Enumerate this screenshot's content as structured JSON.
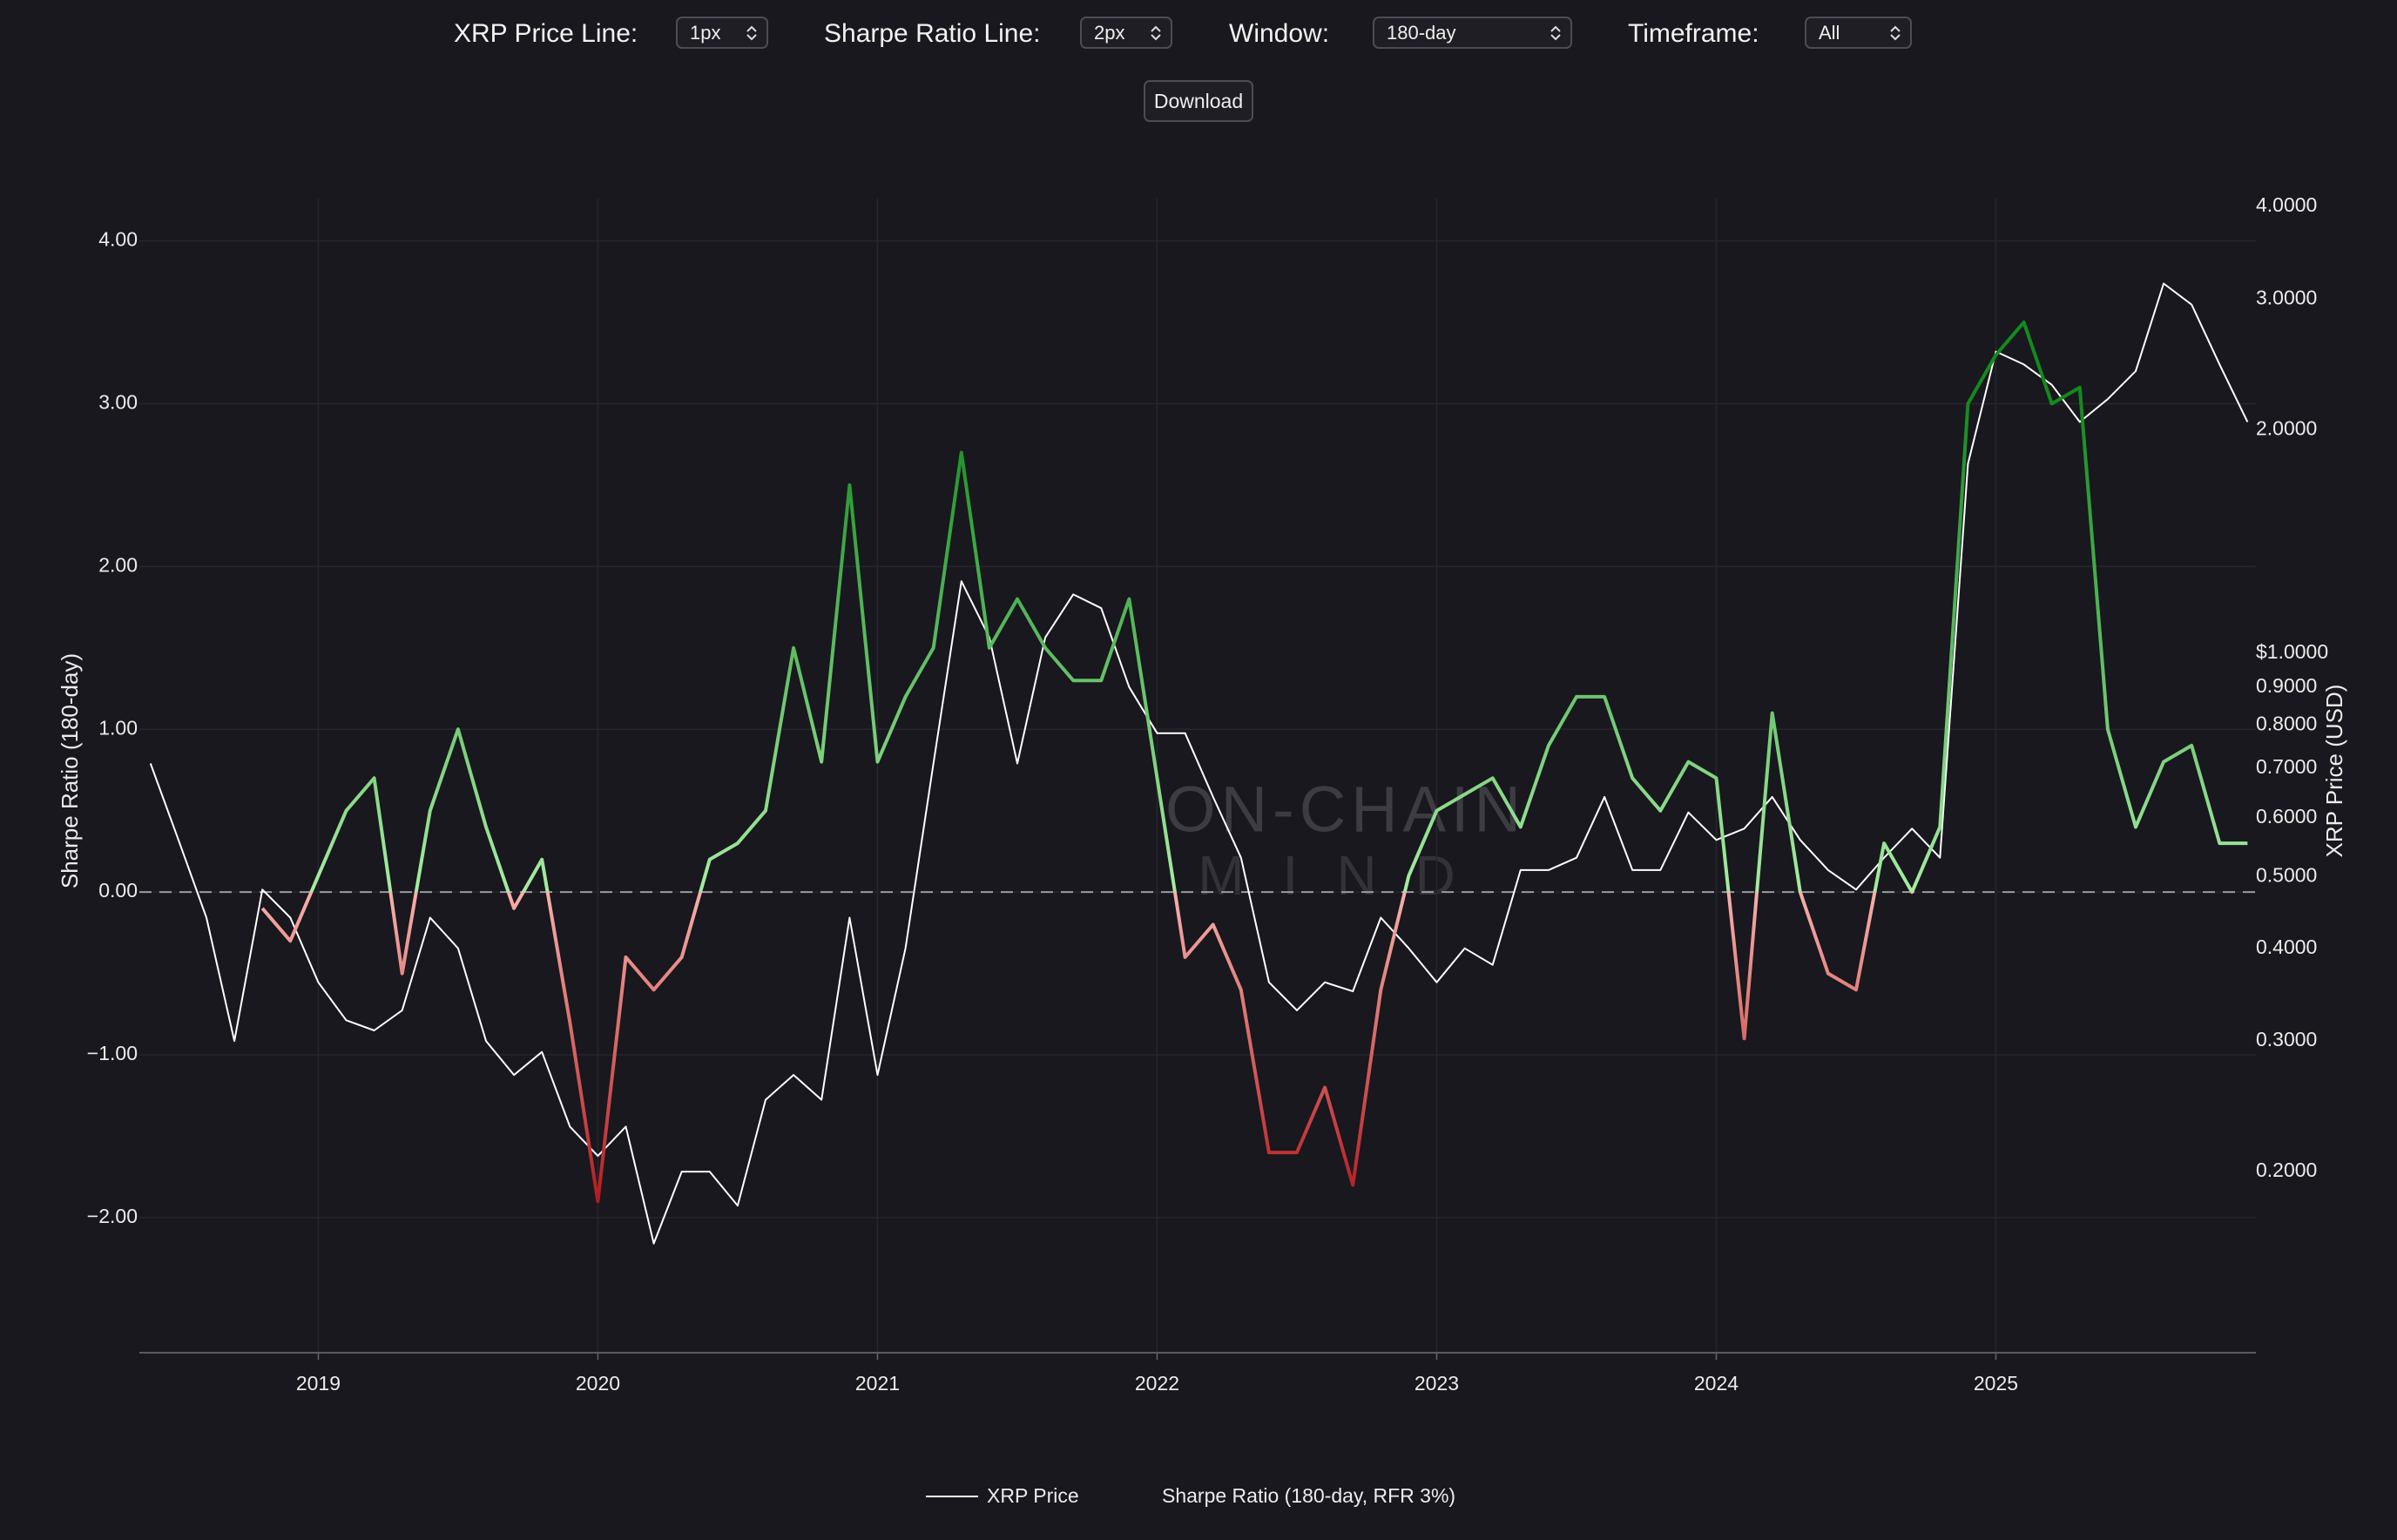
{
  "controls": [
    {
      "label": "XRP Price Line:",
      "value": "1px"
    },
    {
      "label": "Sharpe Ratio Line:",
      "value": "2px"
    },
    {
      "label": "Window:",
      "value": "180-day"
    },
    {
      "label": "Timeframe:",
      "value": "All"
    }
  ],
  "download": "Download",
  "watermark": [
    "ON-CHAIN",
    "MIND"
  ],
  "chart_data": {
    "type": "line",
    "ylabel": "Sharpe Ratio (180-day)",
    "y2label": "XRP Price (USD)",
    "x": [
      2018.4,
      2018.5,
      2018.6,
      2018.7,
      2018.8,
      2018.9,
      2019.0,
      2019.1,
      2019.2,
      2019.3,
      2019.4,
      2019.5,
      2019.6,
      2019.7,
      2019.8,
      2019.9,
      2020.0,
      2020.1,
      2020.2,
      2020.3,
      2020.4,
      2020.5,
      2020.6,
      2020.7,
      2020.8,
      2020.9,
      2021.0,
      2021.1,
      2021.2,
      2021.3,
      2021.4,
      2021.5,
      2021.6,
      2021.7,
      2021.8,
      2021.9,
      2022.0,
      2022.1,
      2022.2,
      2022.3,
      2022.4,
      2022.5,
      2022.6,
      2022.7,
      2022.8,
      2022.9,
      2023.0,
      2023.1,
      2023.2,
      2023.3,
      2023.4,
      2023.5,
      2023.6,
      2023.7,
      2023.8,
      2023.9,
      2024.0,
      2024.1,
      2024.2,
      2024.3,
      2024.4,
      2024.5,
      2024.6,
      2024.7,
      2024.8,
      2024.9,
      2025.0,
      2025.1,
      2025.2,
      2025.3,
      2025.4,
      2025.5,
      2025.6,
      2025.7,
      2025.8,
      2025.9
    ],
    "series": [
      {
        "name": "XRP Price",
        "color": "#ffffff",
        "axis": "y2",
        "values": [
          0.71,
          0.56,
          0.44,
          0.3,
          0.48,
          0.44,
          0.36,
          0.32,
          0.31,
          0.33,
          0.44,
          0.4,
          0.3,
          0.27,
          0.29,
          0.23,
          0.21,
          0.23,
          0.16,
          0.2,
          0.2,
          0.18,
          0.25,
          0.27,
          0.25,
          0.44,
          0.27,
          0.4,
          0.71,
          1.25,
          1.05,
          0.71,
          1.05,
          1.2,
          1.15,
          0.9,
          0.78,
          0.78,
          0.64,
          0.53,
          0.36,
          0.33,
          0.36,
          0.35,
          0.44,
          0.4,
          0.36,
          0.4,
          0.38,
          0.51,
          0.51,
          0.53,
          0.64,
          0.51,
          0.51,
          0.61,
          0.56,
          0.58,
          0.64,
          0.56,
          0.51,
          0.48,
          0.53,
          0.58,
          0.53,
          1.8,
          2.55,
          2.45,
          2.3,
          2.05,
          2.2,
          2.4,
          3.15,
          2.95,
          2.45,
          2.05
        ]
      },
      {
        "name": "Sharpe Ratio (180-day, RFR 3%)",
        "colorscale": [
          [
            -2,
            "#b01218"
          ],
          [
            0,
            "#f8b0aa"
          ],
          [
            0,
            "#a6eca2"
          ],
          [
            3,
            "#138a1e"
          ]
        ],
        "values": [
          null,
          null,
          null,
          null,
          -0.1,
          -0.3,
          0.1,
          0.5,
          0.7,
          -0.5,
          0.5,
          1.0,
          0.4,
          -0.1,
          0.2,
          -0.8,
          -1.9,
          -0.4,
          -0.6,
          -0.4,
          0.2,
          0.3,
          0.5,
          1.5,
          0.8,
          2.5,
          0.8,
          1.2,
          1.5,
          2.7,
          1.5,
          1.8,
          1.5,
          1.3,
          1.3,
          1.8,
          0.7,
          -0.4,
          -0.2,
          -0.6,
          -1.6,
          -1.6,
          -1.2,
          -1.8,
          -0.6,
          0.1,
          0.5,
          0.6,
          0.7,
          0.4,
          0.9,
          1.2,
          1.2,
          0.7,
          0.5,
          0.8,
          0.7,
          -0.9,
          1.1,
          0.0,
          -0.5,
          -0.6,
          0.3,
          0.0,
          0.4,
          3.0,
          3.3,
          3.5,
          3.0,
          3.1,
          1.0,
          0.4,
          0.8,
          0.9,
          0.3,
          0.3
        ]
      }
    ],
    "xlim": [
      2018.36,
      2025.93
    ],
    "xticks": [
      2019,
      2020,
      2021,
      2022,
      2023,
      2024,
      2025
    ],
    "ylim": [
      -2.83,
      4.26
    ],
    "yticks": [
      {
        "value": 4,
        "label": "4.00"
      },
      {
        "value": 3,
        "label": "3.00"
      },
      {
        "value": 2,
        "label": "2.00"
      },
      {
        "value": 1,
        "label": "1.00"
      },
      {
        "value": 0,
        "label": "0.00"
      },
      {
        "value": -1,
        "label": "−1.00"
      },
      {
        "value": -2,
        "label": "−2.00"
      }
    ],
    "y2lim": [
      0.114,
      4.1
    ],
    "y2log": true,
    "y2ticks": [
      {
        "value": 4,
        "label": "4.0000"
      },
      {
        "value": 3,
        "label": "3.0000"
      },
      {
        "value": 2,
        "label": "2.0000"
      },
      {
        "value": 1,
        "label": "$1.0000"
      },
      {
        "value": 0.9,
        "label": "0.9000"
      },
      {
        "value": 0.8,
        "label": "0.8000"
      },
      {
        "value": 0.7,
        "label": "0.7000"
      },
      {
        "value": 0.6,
        "label": "0.6000"
      },
      {
        "value": 0.5,
        "label": "0.5000"
      },
      {
        "value": 0.4,
        "label": "0.4000"
      },
      {
        "value": 0.3,
        "label": "0.3000"
      },
      {
        "value": 0.2,
        "label": "0.2000"
      }
    ],
    "grid": true,
    "zero_line": true,
    "legend": "bottom"
  }
}
